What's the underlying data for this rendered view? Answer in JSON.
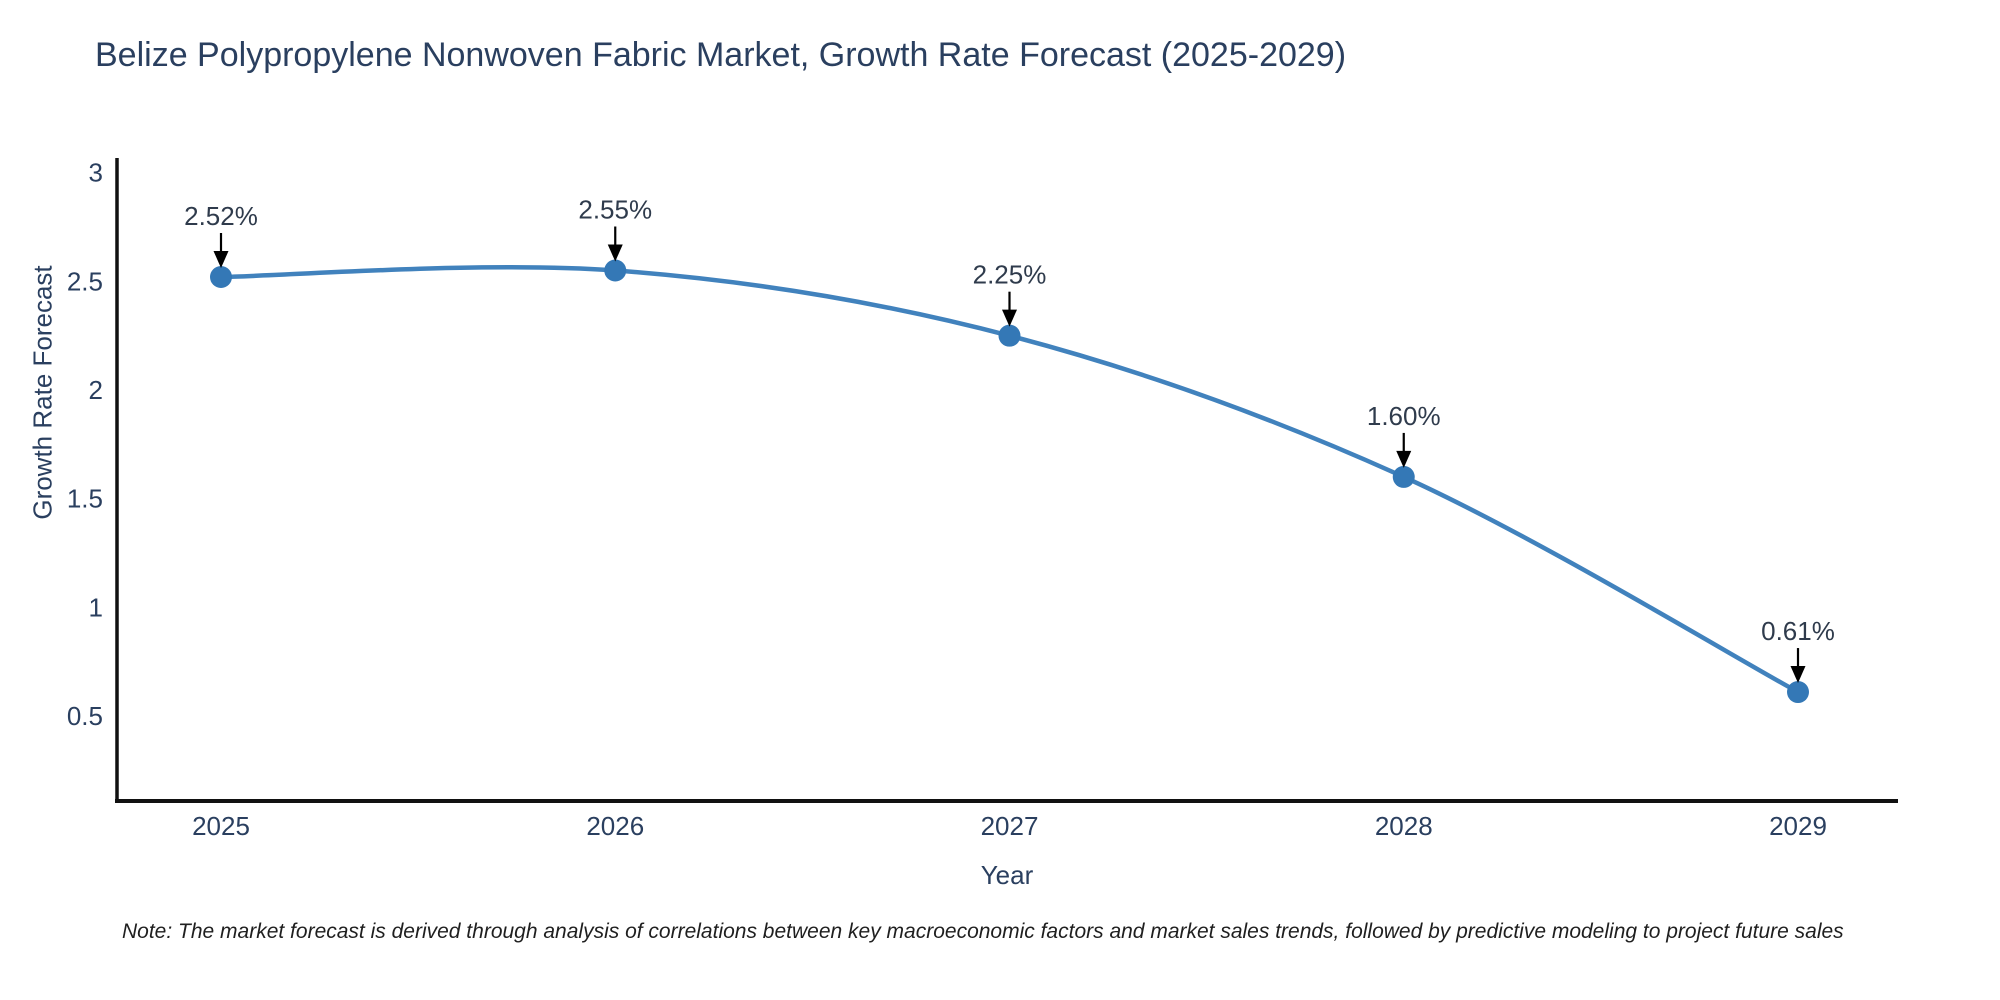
{
  "page": {
    "background": "#ffffff"
  },
  "chart_data": {
    "type": "line",
    "title": "Belize Polypropylene Nonwoven Fabric Market, Growth Rate Forecast (2025-2029)",
    "xlabel": "Year",
    "ylabel": "Growth Rate Forecast",
    "x": [
      2025,
      2026,
      2027,
      2028,
      2029
    ],
    "xtick_labels": [
      "2025",
      "2026",
      "2027",
      "2028",
      "2029"
    ],
    "ytick_values": [
      0.5,
      1,
      1.5,
      2,
      2.5,
      3
    ],
    "ytick_labels": [
      "0.5",
      "1",
      "1.5",
      "2",
      "2.5",
      "3"
    ],
    "ylim": [
      0.11,
      3.09
    ],
    "grid": false,
    "legend": "none",
    "line_shape": "spline",
    "series": [
      {
        "name": "Growth Rate Forecast",
        "values": [
          2.52,
          2.55,
          2.25,
          1.6,
          0.61
        ]
      }
    ],
    "point_labels": [
      "2.52%",
      "2.55%",
      "2.25%",
      "1.60%",
      "0.61%"
    ],
    "colors": {
      "line": "#4182bd",
      "marker": "#3478b6",
      "axis": "#111111",
      "tick_text": "#2a3f5f",
      "annotation_text": "#2f3b4c",
      "arrow": "#000000"
    }
  },
  "note": {
    "text": "Note: The market forecast is derived through analysis of correlations between key macroeconomic factors and market sales trends, followed by predictive modeling to project future sales"
  }
}
